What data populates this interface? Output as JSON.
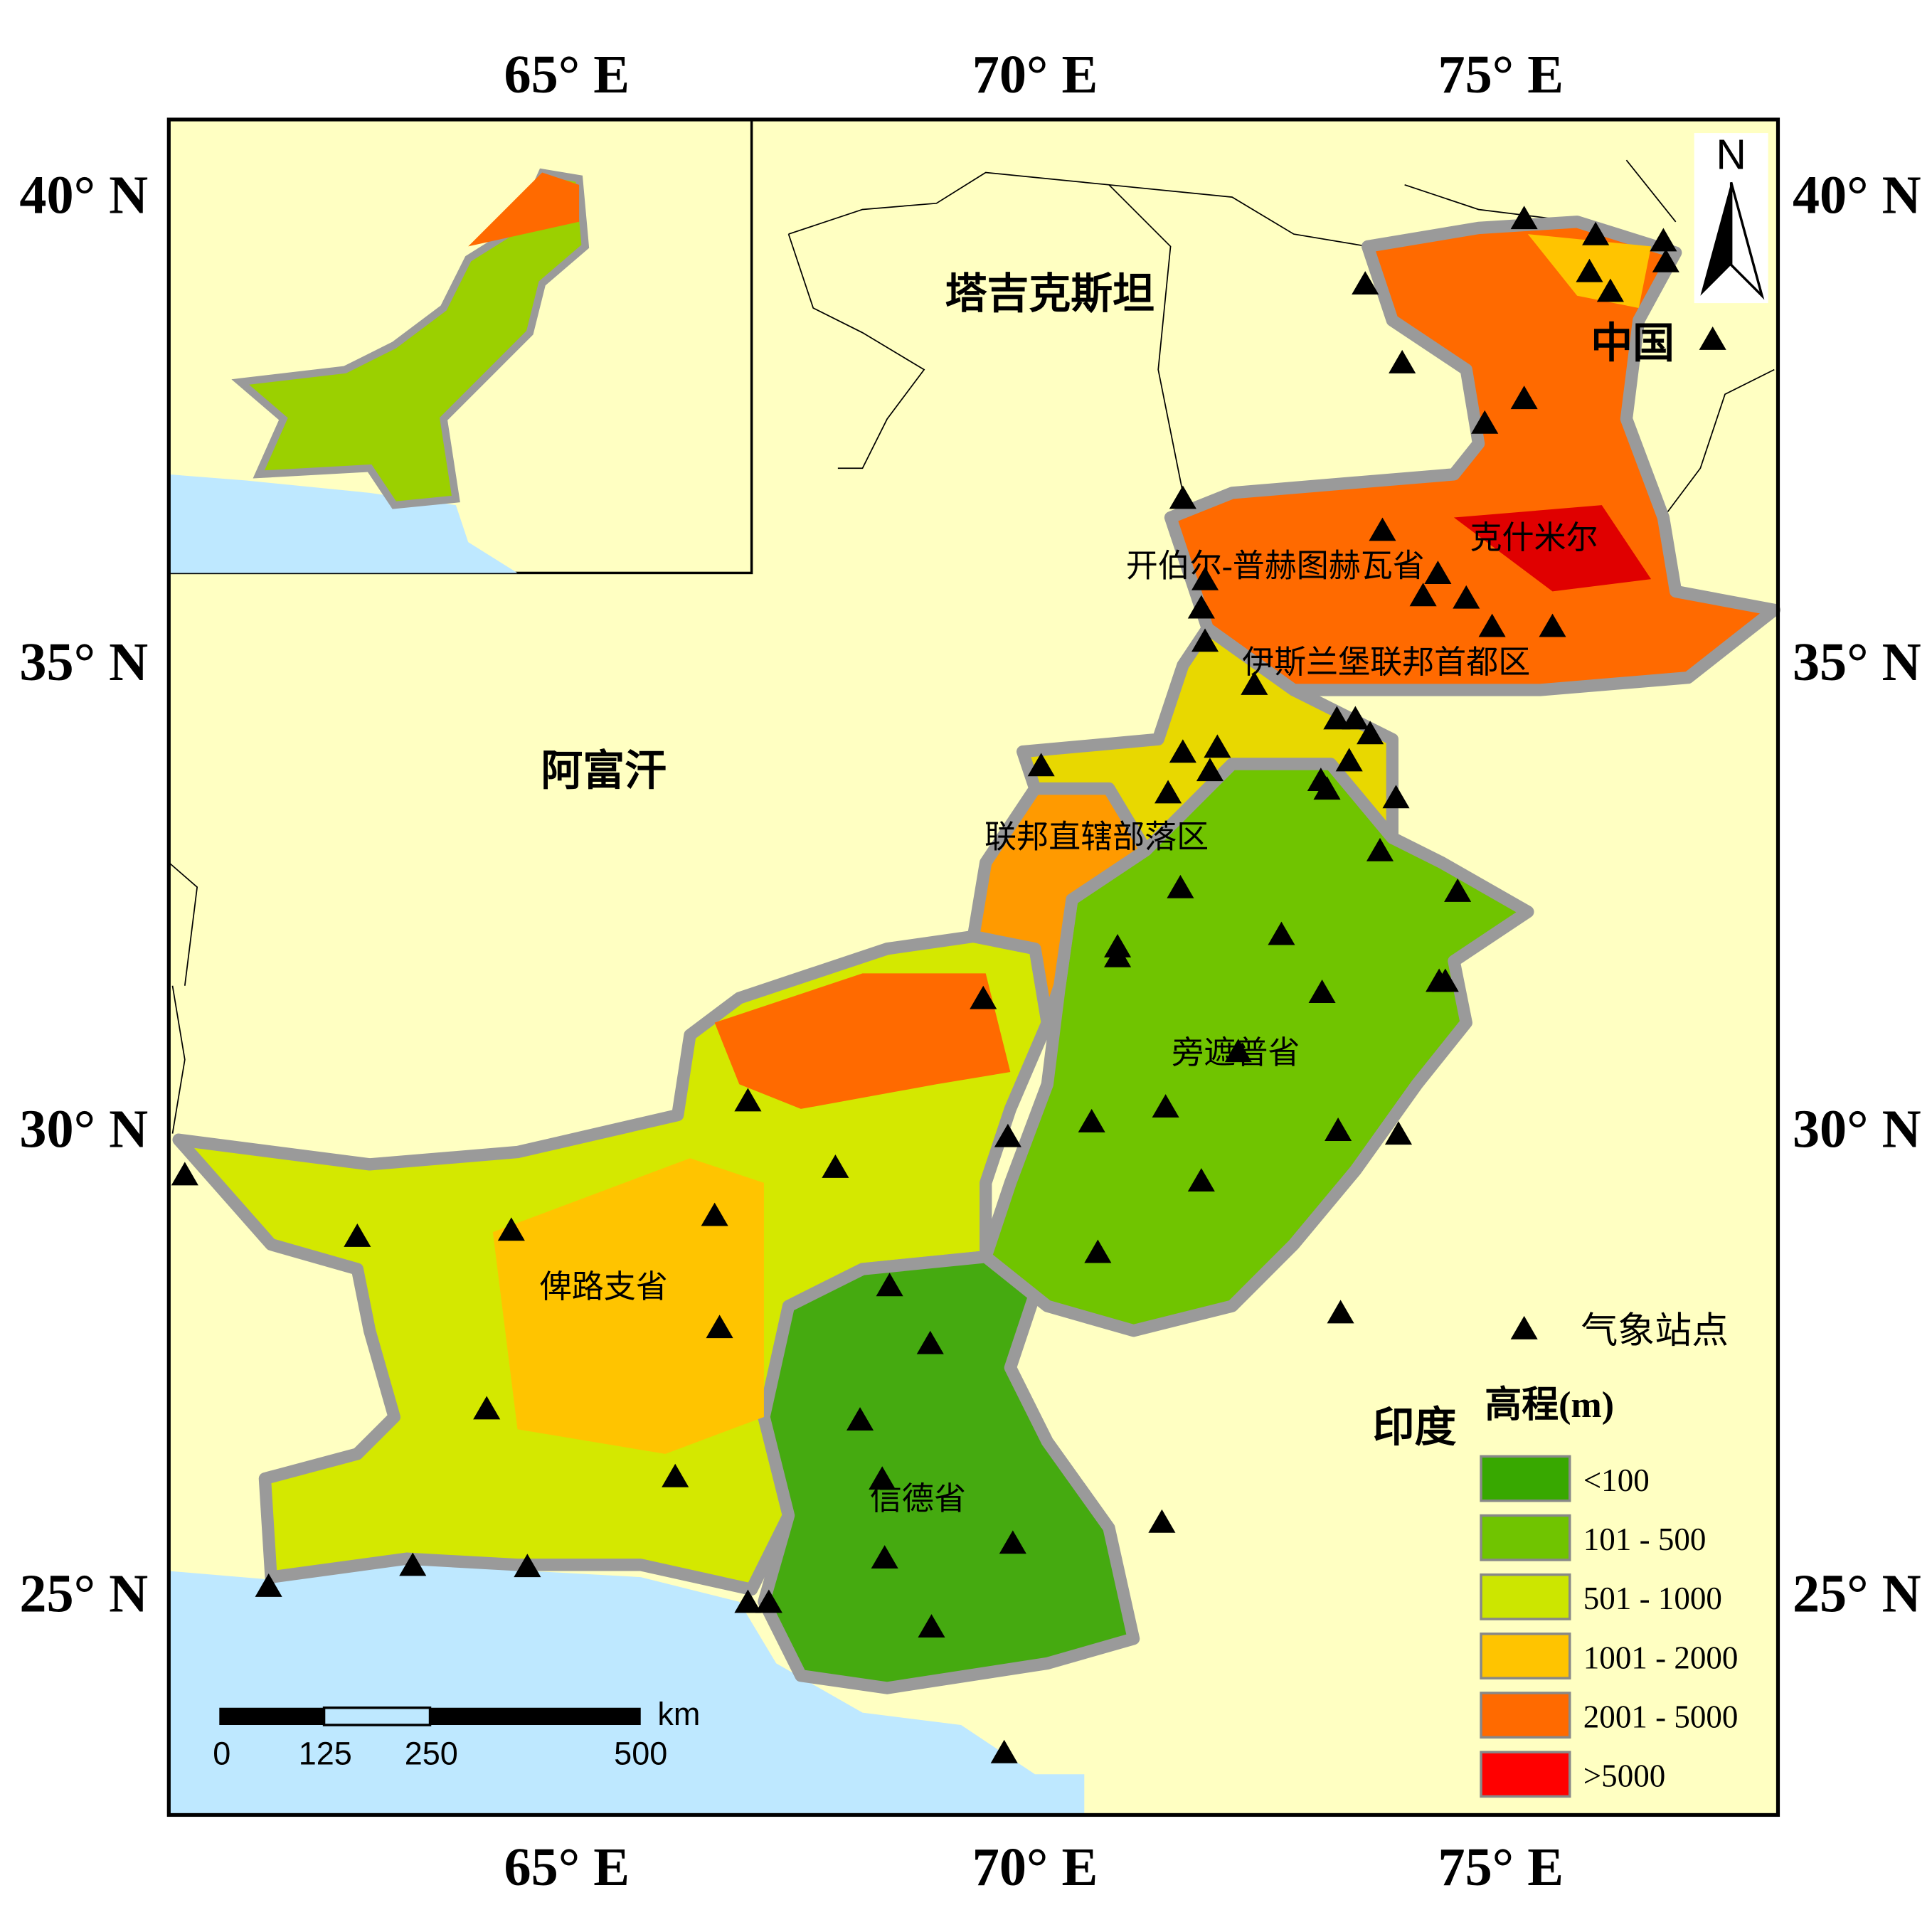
{
  "map": {
    "lon_labels": [
      "65° E",
      "70° E",
      "75° E"
    ],
    "lat_labels": [
      "40° N",
      "35° N",
      "30° N",
      "25° N"
    ],
    "countries": [
      "塔吉克斯坦",
      "阿富汗",
      "中国",
      "印度"
    ],
    "regions": [
      "克什米尔",
      "开伯尔-普赫图赫瓦省",
      "伊斯兰堡联邦首都区",
      "联邦直辖部落区",
      "旁遮普省",
      "俾路支省",
      "信德省"
    ],
    "north": "N",
    "legend": {
      "station": "气象站点",
      "elevation_title": "高程(m)",
      "classes": [
        {
          "label": "<100",
          "color": "#38a800"
        },
        {
          "label": "101 - 500",
          "color": "#70c400"
        },
        {
          "label": "501 - 1000",
          "color": "#cce600"
        },
        {
          "label": "1001 - 2000",
          "color": "#ffc400"
        },
        {
          "label": "2001 - 5000",
          "color": "#ff6a00"
        },
        {
          "label": ">5000",
          "color": "#ff0000"
        }
      ]
    },
    "scale_bar": {
      "labels": [
        "0",
        "125",
        "250",
        "500"
      ],
      "unit": "km"
    }
  }
}
